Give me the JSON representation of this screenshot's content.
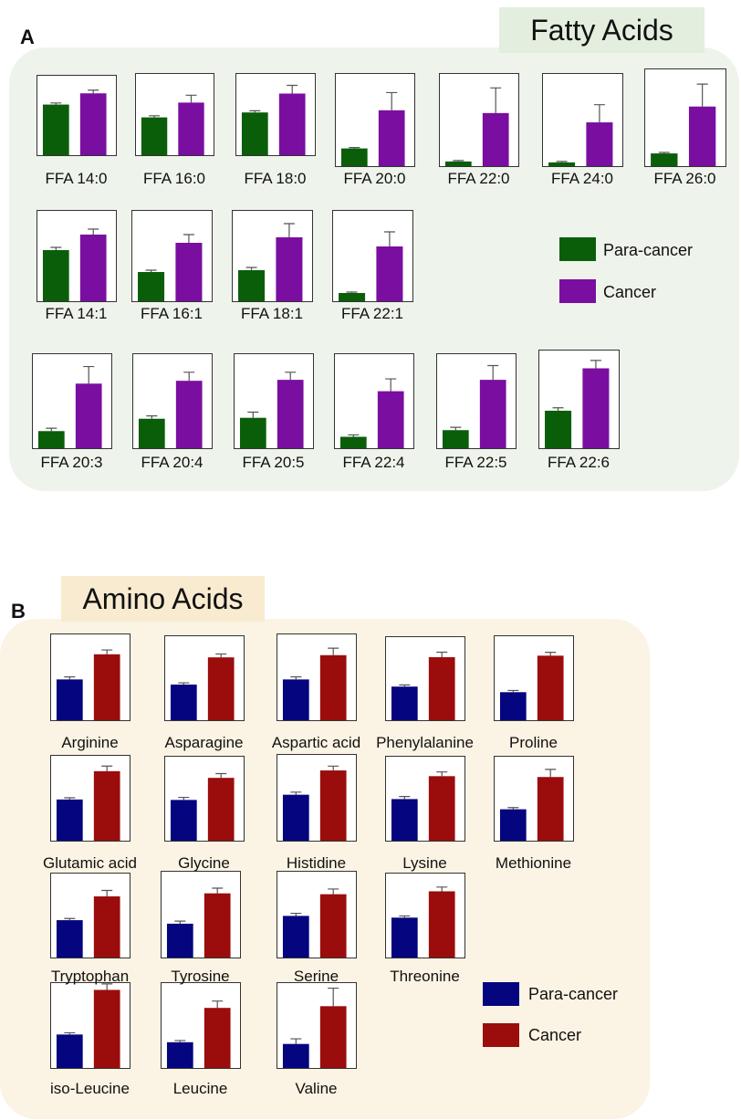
{
  "panel_a": {
    "letter": "A",
    "title": "Fatty Acids",
    "legend": [
      {
        "label": "Para-cancer",
        "color": "#0a5e0a"
      },
      {
        "label": "Cancer",
        "color": "#7a0ea0"
      }
    ]
  },
  "panel_b": {
    "letter": "B",
    "title": "Amino Acids",
    "legend": [
      {
        "label": "Para-cancer",
        "color": "#05057f"
      },
      {
        "label": "Cancer",
        "color": "#9b0c0c"
      }
    ]
  },
  "colors": {
    "panel_a_bg": "#eef3eb",
    "panel_b_bg": "#fbf3e3",
    "error_bar": "#555555"
  },
  "chart_data": [
    {
      "type": "bar",
      "title": "Fatty Acids",
      "series_names": [
        "Para-cancer",
        "Cancer"
      ],
      "subplots": [
        {
          "label": "FFA 14:0",
          "values": [
            0.63,
            0.77
          ],
          "errors": [
            0.02,
            0.04
          ]
        },
        {
          "label": "FFA 16:0",
          "values": [
            0.46,
            0.64
          ],
          "errors": [
            0.02,
            0.09
          ]
        },
        {
          "label": "FFA 18:0",
          "values": [
            0.52,
            0.75
          ],
          "errors": [
            0.02,
            0.1
          ]
        },
        {
          "label": "FFA 20:0",
          "values": [
            0.19,
            0.6
          ],
          "errors": [
            0.01,
            0.19
          ]
        },
        {
          "label": "FFA 22:0",
          "values": [
            0.05,
            0.57
          ],
          "errors": [
            0.01,
            0.27
          ]
        },
        {
          "label": "FFA 24:0",
          "values": [
            0.04,
            0.47
          ],
          "errors": [
            0.01,
            0.19
          ]
        },
        {
          "label": "FFA 26:0",
          "values": [
            0.13,
            0.61
          ],
          "errors": [
            0.01,
            0.23
          ]
        },
        {
          "label": "FFA 14:1",
          "values": [
            0.56,
            0.73
          ],
          "errors": [
            0.03,
            0.06
          ]
        },
        {
          "label": "FFA 16:1",
          "values": [
            0.32,
            0.64
          ],
          "errors": [
            0.02,
            0.09
          ]
        },
        {
          "label": "FFA 18:1",
          "values": [
            0.34,
            0.7
          ],
          "errors": [
            0.03,
            0.15
          ]
        },
        {
          "label": "FFA 22:1",
          "values": [
            0.09,
            0.6
          ],
          "errors": [
            0.01,
            0.16
          ]
        },
        {
          "label": "FFA 20:3",
          "values": [
            0.18,
            0.68
          ],
          "errors": [
            0.03,
            0.18
          ]
        },
        {
          "label": "FFA 20:4",
          "values": [
            0.31,
            0.71
          ],
          "errors": [
            0.03,
            0.09
          ]
        },
        {
          "label": "FFA 20:5",
          "values": [
            0.32,
            0.72
          ],
          "errors": [
            0.06,
            0.08
          ]
        },
        {
          "label": "FFA 22:4",
          "values": [
            0.12,
            0.6
          ],
          "errors": [
            0.02,
            0.13
          ]
        },
        {
          "label": "FFA 22:5",
          "values": [
            0.19,
            0.72
          ],
          "errors": [
            0.03,
            0.15
          ]
        },
        {
          "label": "FFA 22:6",
          "values": [
            0.38,
            0.81
          ],
          "errors": [
            0.03,
            0.08
          ]
        }
      ]
    },
    {
      "type": "bar",
      "title": "Amino Acids",
      "series_names": [
        "Para-cancer",
        "Cancer"
      ],
      "subplots": [
        {
          "label": "Arginine",
          "values": [
            0.47,
            0.76
          ],
          "errors": [
            0.03,
            0.05
          ]
        },
        {
          "label": "Asparagine",
          "values": [
            0.42,
            0.74
          ],
          "errors": [
            0.02,
            0.04
          ]
        },
        {
          "label": "Aspartic acid",
          "values": [
            0.47,
            0.75
          ],
          "errors": [
            0.03,
            0.08
          ]
        },
        {
          "label": "Phenylalanine",
          "values": [
            0.4,
            0.75
          ],
          "errors": [
            0.02,
            0.06
          ]
        },
        {
          "label": "Proline",
          "values": [
            0.33,
            0.76
          ],
          "errors": [
            0.02,
            0.04
          ]
        },
        {
          "label": "Glutamic acid",
          "values": [
            0.48,
            0.81
          ],
          "errors": [
            0.02,
            0.06
          ]
        },
        {
          "label": "Glycine",
          "values": [
            0.48,
            0.74
          ],
          "errors": [
            0.03,
            0.05
          ]
        },
        {
          "label": "Histidine",
          "values": [
            0.53,
            0.81
          ],
          "errors": [
            0.03,
            0.05
          ]
        },
        {
          "label": "Lysine",
          "values": [
            0.49,
            0.76
          ],
          "errors": [
            0.03,
            0.05
          ]
        },
        {
          "label": "Methionine",
          "values": [
            0.37,
            0.75
          ],
          "errors": [
            0.02,
            0.09
          ]
        },
        {
          "label": "Tryptophan",
          "values": [
            0.44,
            0.72
          ],
          "errors": [
            0.02,
            0.07
          ]
        },
        {
          "label": "Tyrosine",
          "values": [
            0.39,
            0.74
          ],
          "errors": [
            0.03,
            0.06
          ]
        },
        {
          "label": "Serine",
          "values": [
            0.48,
            0.73
          ],
          "errors": [
            0.03,
            0.06
          ]
        },
        {
          "label": "Threonine",
          "values": [
            0.47,
            0.78
          ],
          "errors": [
            0.02,
            0.05
          ]
        },
        {
          "label": "iso-Leucine",
          "values": [
            0.39,
            0.91
          ],
          "errors": [
            0.02,
            0.07
          ]
        },
        {
          "label": "Leucine",
          "values": [
            0.3,
            0.7
          ],
          "errors": [
            0.02,
            0.08
          ]
        },
        {
          "label": "Valine",
          "values": [
            0.28,
            0.72
          ],
          "errors": [
            0.06,
            0.21
          ]
        }
      ]
    }
  ]
}
